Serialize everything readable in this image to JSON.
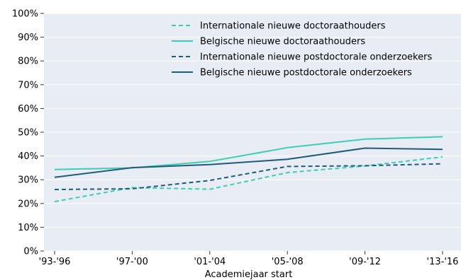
{
  "chart_data": {
    "type": "line",
    "title": "",
    "xlabel": "Academiejaar start",
    "ylabel": "",
    "categories": [
      "'93-'96",
      "'97-'00",
      "'01-'04",
      "'05-'08",
      "'09-'12",
      "'13-'16"
    ],
    "yticks": [
      "0%",
      "10%",
      "20%",
      "30%",
      "40%",
      "50%",
      "60%",
      "70%",
      "80%",
      "90%",
      "100%"
    ],
    "ylim": [
      0,
      100
    ],
    "y_unit": "%",
    "grid": true,
    "legend_position": "top-right",
    "background_color": "#e8ecf5",
    "series": [
      {
        "name": "Internationale nieuwe doctoraathouders",
        "color": "#3ecfb2",
        "dashed": true,
        "values": [
          20.8,
          26.7,
          26.0,
          33.0,
          35.8,
          39.6
        ]
      },
      {
        "name": "Belgische nieuwe doctoraathouders",
        "color": "#3ecfb2",
        "dashed": false,
        "values": [
          34.3,
          35.0,
          37.7,
          43.5,
          47.1,
          48.1
        ]
      },
      {
        "name": "Internationale nieuwe postdoctorale onderzoekers",
        "color": "#1f5c78",
        "dashed": true,
        "values": [
          25.9,
          26.2,
          29.7,
          35.6,
          35.9,
          36.7
        ]
      },
      {
        "name": "Belgische nieuwe postdoctorale onderzoekers",
        "color": "#1f5c78",
        "dashed": false,
        "values": [
          31.0,
          35.1,
          36.4,
          38.6,
          43.3,
          42.8
        ]
      }
    ]
  }
}
